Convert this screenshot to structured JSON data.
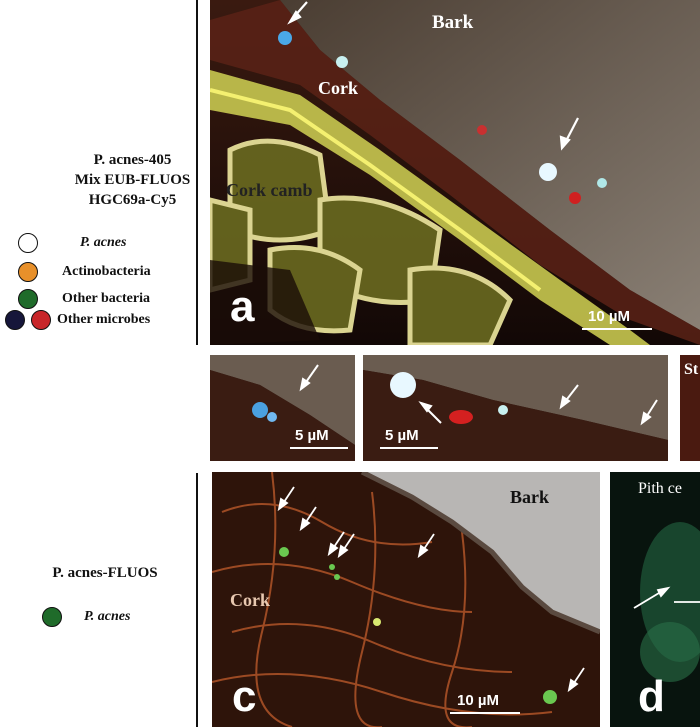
{
  "left_top": {
    "probes": [
      "P. acnes-405",
      "Mix EUB-FLUOS",
      "HGC69a-Cy5"
    ],
    "legend": [
      {
        "label": "P. acnes",
        "italic": true,
        "colors": [
          "#ffffff"
        ]
      },
      {
        "label": "Actinobacteria",
        "italic": false,
        "colors": [
          "#e8902a"
        ]
      },
      {
        "label": "Other bacteria",
        "italic": false,
        "colors": [
          "#1f6b2a"
        ]
      },
      {
        "label": "Other microbes",
        "italic": false,
        "colors": [
          "#16163a",
          "#c8262a"
        ]
      }
    ]
  },
  "left_bottom": {
    "probe": "P. acnes-FLUOS",
    "legend": [
      {
        "label": "P. acnes",
        "italic": true,
        "colors": [
          "#1f6b2a"
        ]
      }
    ]
  },
  "panel_a": {
    "letter": "a",
    "labels": {
      "bark": "Bark",
      "cork": "Cork",
      "cork_camb": "Cork camb"
    },
    "scale": "10 µM"
  },
  "panel_b": {
    "insets": [
      {
        "scale": "5 µM"
      },
      {
        "scale": "5 µM"
      },
      {
        "label": "St"
      }
    ]
  },
  "panel_c": {
    "letter": "c",
    "labels": {
      "bark": "Bark",
      "cork": "Cork"
    },
    "scale": "10 µM"
  },
  "panel_d": {
    "letter": "d",
    "label": "Pith ce"
  }
}
